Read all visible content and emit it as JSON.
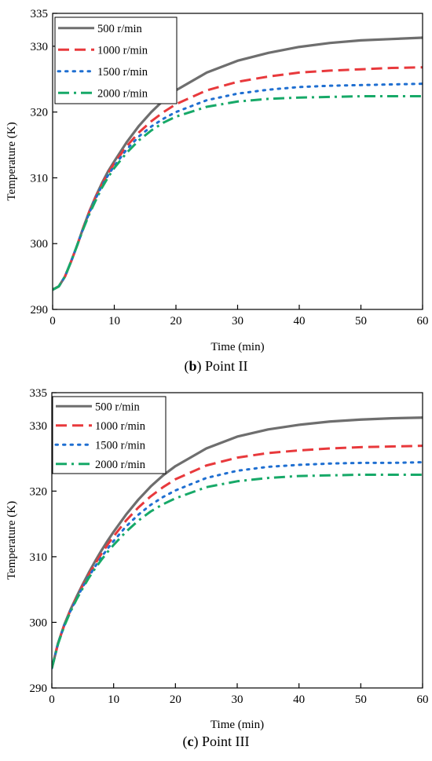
{
  "chart_data": [
    {
      "type": "line",
      "caption_letter": "b",
      "caption_text": "Point II",
      "xlabel": "Time (min)",
      "ylabel": "Temperature (K)",
      "xlim": [
        0,
        60
      ],
      "ylim": [
        290,
        335
      ],
      "xticks": [
        0,
        10,
        20,
        30,
        40,
        50,
        60
      ],
      "yticks": [
        290,
        300,
        310,
        320,
        330,
        335
      ],
      "grid": false,
      "legend_position": "top-left",
      "series": [
        {
          "name": "500 r/min",
          "color": "#6e6e6e",
          "dash": "solid",
          "x": [
            0,
            1,
            2,
            3,
            4,
            5,
            6,
            7,
            8,
            9,
            10,
            12,
            14,
            16,
            18,
            20,
            25,
            30,
            35,
            40,
            45,
            50,
            55,
            60
          ],
          "y": [
            293.0,
            293.5,
            295.0,
            297.3,
            299.8,
            302.5,
            305.0,
            307.2,
            309.2,
            311.0,
            312.5,
            315.4,
            317.9,
            320.0,
            321.8,
            323.3,
            326.0,
            327.8,
            329.0,
            329.9,
            330.5,
            330.9,
            331.1,
            331.3
          ]
        },
        {
          "name": "1000 r/min",
          "color": "#e8393c",
          "dash": "dash",
          "x": [
            0,
            1,
            2,
            3,
            4,
            5,
            6,
            7,
            8,
            9,
            10,
            12,
            14,
            16,
            18,
            20,
            25,
            30,
            35,
            40,
            45,
            50,
            55,
            60
          ],
          "y": [
            293.0,
            293.5,
            295.0,
            297.3,
            299.8,
            302.5,
            305.0,
            307.1,
            309.0,
            310.7,
            312.2,
            314.8,
            316.9,
            318.6,
            320.0,
            321.2,
            323.3,
            324.6,
            325.4,
            326.0,
            326.3,
            326.5,
            326.7,
            326.8
          ]
        },
        {
          "name": "1500 r/min",
          "color": "#1f6fd1",
          "dash": "dot",
          "x": [
            0,
            1,
            2,
            3,
            4,
            5,
            6,
            7,
            8,
            9,
            10,
            12,
            14,
            16,
            18,
            20,
            25,
            30,
            35,
            40,
            45,
            50,
            55,
            60
          ],
          "y": [
            293.0,
            293.5,
            295.0,
            297.3,
            299.8,
            302.4,
            304.8,
            306.9,
            308.8,
            310.4,
            311.8,
            314.3,
            316.3,
            317.8,
            319.0,
            320.0,
            321.8,
            322.8,
            323.4,
            323.8,
            324.0,
            324.1,
            324.2,
            324.3
          ]
        },
        {
          "name": "2000 r/min",
          "color": "#17a968",
          "dash": "dashdot",
          "x": [
            0,
            1,
            2,
            3,
            4,
            5,
            6,
            7,
            8,
            9,
            10,
            12,
            14,
            16,
            18,
            20,
            25,
            30,
            35,
            40,
            45,
            50,
            55,
            60
          ],
          "y": [
            293.0,
            293.5,
            295.0,
            297.3,
            299.8,
            302.3,
            304.6,
            306.6,
            308.5,
            310.1,
            311.5,
            313.8,
            315.7,
            317.2,
            318.4,
            319.3,
            320.8,
            321.6,
            322.0,
            322.2,
            322.3,
            322.4,
            322.4,
            322.4
          ]
        }
      ]
    },
    {
      "type": "line",
      "caption_letter": "c",
      "caption_text": "Point III",
      "xlabel": "Time (min)",
      "ylabel": "Temperature (K)",
      "xlim": [
        0,
        60
      ],
      "ylim": [
        290,
        335
      ],
      "xticks": [
        0,
        10,
        20,
        30,
        40,
        50,
        60
      ],
      "yticks": [
        290,
        300,
        310,
        320,
        330,
        335
      ],
      "grid": false,
      "legend_position": "top-left",
      "series": [
        {
          "name": "500 r/min",
          "color": "#6e6e6e",
          "dash": "solid",
          "x": [
            0,
            1,
            2,
            3,
            4,
            5,
            6,
            7,
            8,
            9,
            10,
            12,
            14,
            16,
            18,
            20,
            25,
            30,
            35,
            40,
            45,
            50,
            55,
            60
          ],
          "y": [
            293.0,
            296.8,
            299.6,
            301.9,
            303.9,
            305.8,
            307.6,
            309.3,
            310.9,
            312.4,
            313.8,
            316.4,
            318.7,
            320.7,
            322.4,
            323.8,
            326.5,
            328.3,
            329.4,
            330.1,
            330.6,
            330.9,
            331.1,
            331.2
          ]
        },
        {
          "name": "1000 r/min",
          "color": "#e8393c",
          "dash": "dash",
          "x": [
            0,
            1,
            2,
            3,
            4,
            5,
            6,
            7,
            8,
            9,
            10,
            12,
            14,
            16,
            18,
            20,
            25,
            30,
            35,
            40,
            45,
            50,
            55,
            60
          ],
          "y": [
            293.0,
            296.8,
            299.5,
            301.8,
            303.8,
            305.6,
            307.3,
            308.9,
            310.4,
            311.8,
            313.1,
            315.5,
            317.5,
            319.2,
            320.6,
            321.8,
            323.9,
            325.1,
            325.8,
            326.2,
            326.5,
            326.7,
            326.8,
            326.9
          ]
        },
        {
          "name": "1500 r/min",
          "color": "#1f6fd1",
          "dash": "dot",
          "x": [
            0,
            1,
            2,
            3,
            4,
            5,
            6,
            7,
            8,
            9,
            10,
            12,
            14,
            16,
            18,
            20,
            25,
            30,
            35,
            40,
            45,
            50,
            55,
            60
          ],
          "y": [
            293.0,
            296.8,
            299.5,
            301.7,
            303.6,
            305.4,
            307.0,
            308.5,
            309.9,
            311.2,
            312.4,
            314.6,
            316.4,
            317.9,
            319.1,
            320.1,
            322.0,
            323.1,
            323.7,
            324.0,
            324.2,
            324.3,
            324.3,
            324.4
          ]
        },
        {
          "name": "2000 r/min",
          "color": "#17a968",
          "dash": "dashdot",
          "x": [
            0,
            1,
            2,
            3,
            4,
            5,
            6,
            7,
            8,
            9,
            10,
            12,
            14,
            16,
            18,
            20,
            25,
            30,
            35,
            40,
            45,
            50,
            55,
            60
          ],
          "y": [
            293.0,
            296.7,
            299.4,
            301.6,
            303.5,
            305.2,
            306.8,
            308.2,
            309.5,
            310.7,
            311.8,
            313.8,
            315.5,
            316.9,
            318.0,
            318.9,
            320.6,
            321.5,
            322.0,
            322.3,
            322.4,
            322.5,
            322.5,
            322.5
          ]
        }
      ]
    }
  ]
}
